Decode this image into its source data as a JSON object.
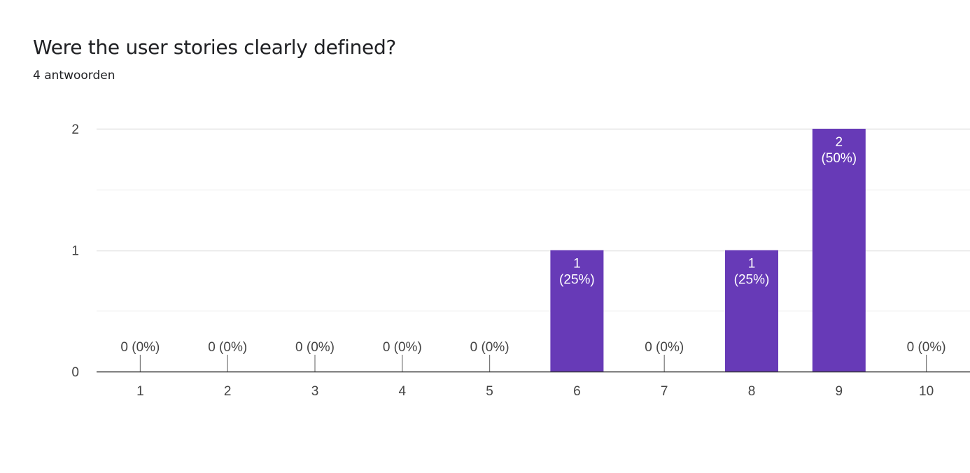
{
  "header": {
    "title": "Were the user stories clearly defined?",
    "subtitle": "4 antwoorden"
  },
  "colors": {
    "bar": "#673ab7",
    "grid": "#ebebeb",
    "axis": "#333333",
    "label_outside": "#444444",
    "label_inside": "#ffffff"
  },
  "chart_data": {
    "type": "bar",
    "title": "Were the user stories clearly defined?",
    "categories": [
      "1",
      "2",
      "3",
      "4",
      "5",
      "6",
      "7",
      "8",
      "9",
      "10"
    ],
    "values": [
      0,
      0,
      0,
      0,
      0,
      1,
      0,
      1,
      2,
      0
    ],
    "data_labels": [
      "0 (0%)",
      "0 (0%)",
      "0 (0%)",
      "0 (0%)",
      "0 (0%)",
      "1\n(25%)",
      "0 (0%)",
      "1\n(25%)",
      "2\n(50%)",
      "0 (0%)"
    ],
    "xlabel": "",
    "ylabel": "",
    "ylim": [
      0,
      2
    ],
    "yticks": [
      0,
      1,
      2
    ],
    "grid": true,
    "legend": "none"
  }
}
